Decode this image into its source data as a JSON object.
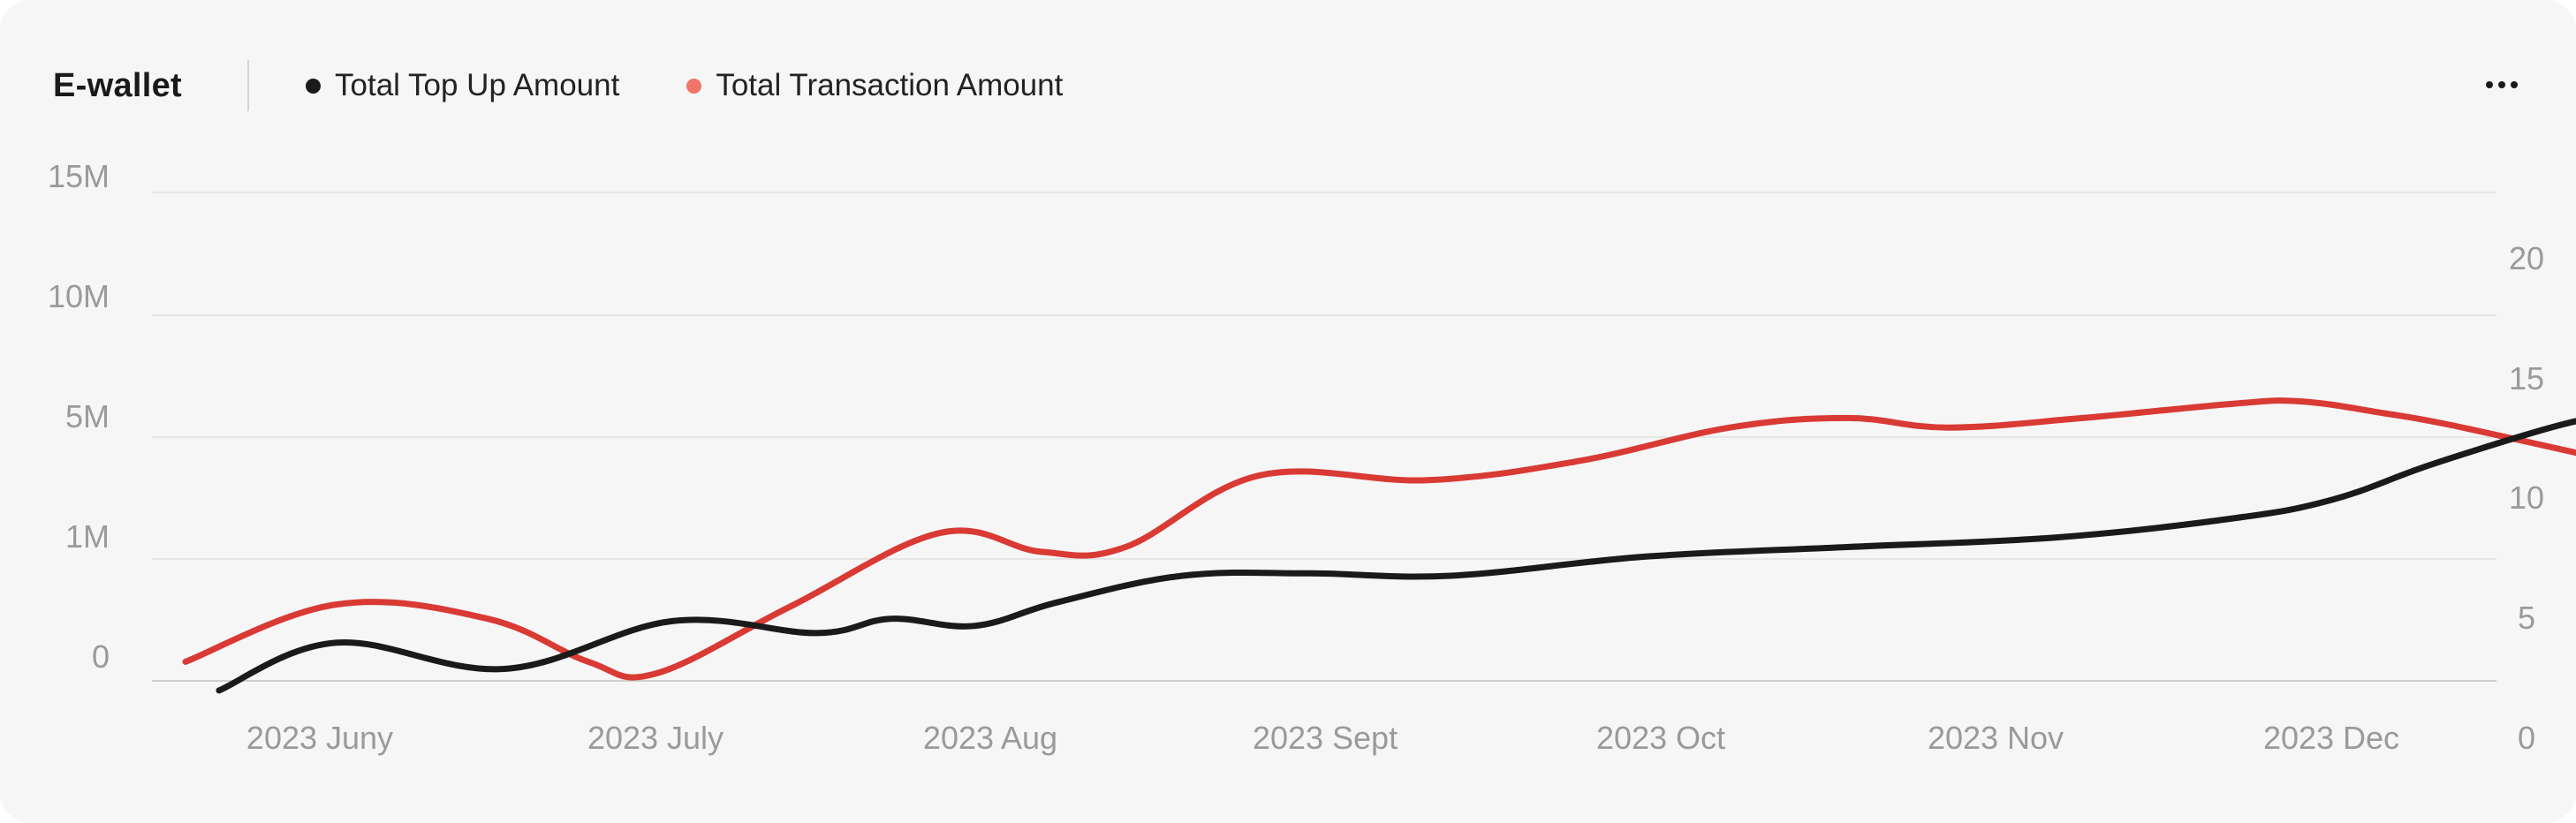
{
  "header": {
    "title": "E-wallet",
    "menu_icon": "more-horizontal-icon"
  },
  "colors": {
    "background": "#f6f6f6",
    "grid": "#e6e6e6",
    "baseline": "#cfcfcf",
    "series_top_up": "#1a1a1a",
    "series_transaction": "#d93a34",
    "legend_transaction_dot": "#f07468",
    "tick_text": "#9a9a9a"
  },
  "chart_data": {
    "type": "line",
    "title": "E-wallet",
    "x_tick_labels": [
      "2023 Juny",
      "2023 July",
      "2023 Aug",
      "2023 Sept",
      "2023 Oct",
      "2023 Nov",
      "2023 Dec"
    ],
    "y_left_tick_labels": [
      "0",
      "1M",
      "5M",
      "10M",
      "15M"
    ],
    "y_right_tick_labels": [
      "0",
      "5",
      "10",
      "15",
      "20"
    ],
    "y_right_lim": [
      0,
      20
    ],
    "grid": true,
    "legend_position": "top-left",
    "series": [
      {
        "name": "Total Top Up Amount",
        "axis": "right",
        "x": [
          0.2,
          0.55,
          1.05,
          1.55,
          1.98,
          2.2,
          2.45,
          2.7,
          3.07,
          3.45,
          3.87,
          4.45,
          5.05,
          5.67,
          6.2,
          6.5,
          6.8,
          7.2,
          7.33
        ],
        "values": [
          2.0,
          4.0,
          2.9,
          4.9,
          4.4,
          5.0,
          4.7,
          5.7,
          6.8,
          6.9,
          6.8,
          7.6,
          8.0,
          8.4,
          9.2,
          10.0,
          11.5,
          13.2,
          13.3
        ]
      },
      {
        "name": "Total Transaction Amount",
        "axis": "right",
        "x": [
          0.1,
          0.55,
          1.0,
          1.3,
          1.5,
          1.9,
          2.35,
          2.65,
          2.9,
          3.3,
          3.8,
          4.25,
          4.7,
          5.05,
          5.35,
          5.75,
          6.2,
          6.4,
          6.65,
          6.85,
          7.3
        ],
        "values": [
          3.2,
          5.6,
          5.0,
          3.2,
          2.7,
          5.5,
          8.6,
          7.8,
          8.0,
          11.0,
          10.8,
          11.6,
          13.0,
          13.4,
          13.0,
          13.4,
          14.0,
          14.1,
          13.6,
          13.1,
          11.7
        ]
      }
    ]
  }
}
